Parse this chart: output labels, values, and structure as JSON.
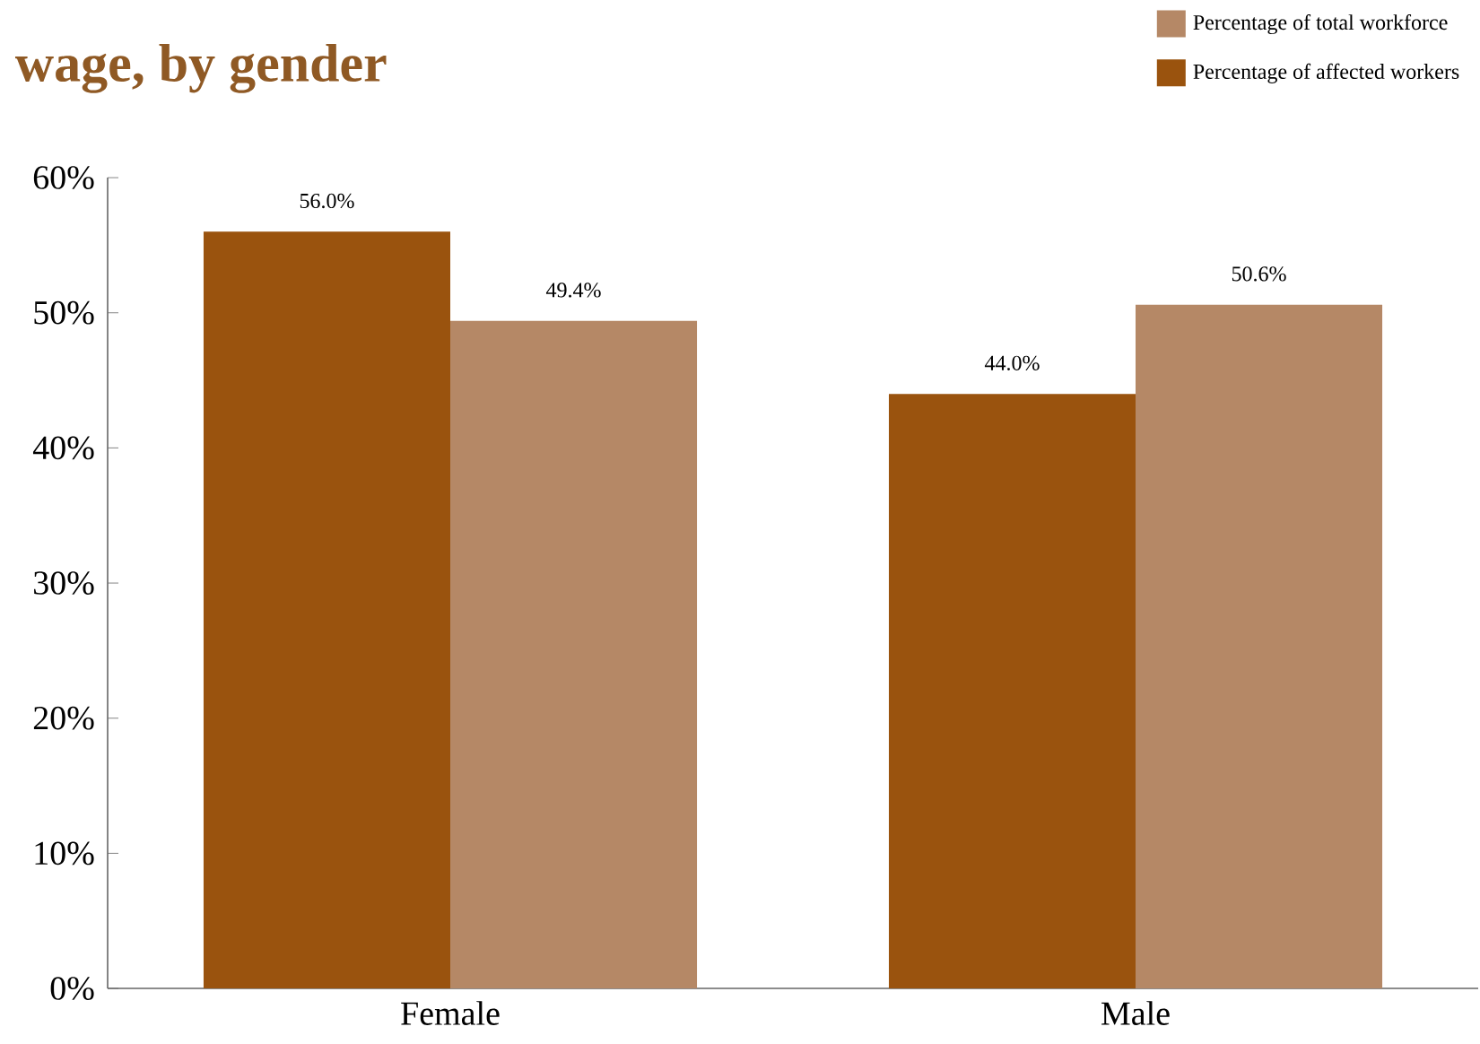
{
  "chart_data": {
    "type": "bar",
    "title": "wage, by gender",
    "categories": [
      "Female",
      "Male"
    ],
    "series": [
      {
        "name": "Percentage of affected workers",
        "color": "#9a530e",
        "values": [
          56.0,
          44.0
        ],
        "value_labels": [
          "56.0%",
          "44.0%"
        ]
      },
      {
        "name": "Percentage of total workforce",
        "color": "#b58866",
        "values": [
          49.4,
          50.6
        ],
        "value_labels": [
          "49.4%",
          "50.6%"
        ]
      }
    ],
    "ylim": [
      0,
      60
    ],
    "yticks": [
      {
        "value": 0,
        "label": "0%"
      },
      {
        "value": 10,
        "label": "10%"
      },
      {
        "value": 20,
        "label": "20%"
      },
      {
        "value": 30,
        "label": "30%"
      },
      {
        "value": 40,
        "label": "40%"
      },
      {
        "value": 50,
        "label": "50%"
      },
      {
        "value": 60,
        "label": "60%"
      }
    ],
    "legend": "top right",
    "grid": false
  }
}
